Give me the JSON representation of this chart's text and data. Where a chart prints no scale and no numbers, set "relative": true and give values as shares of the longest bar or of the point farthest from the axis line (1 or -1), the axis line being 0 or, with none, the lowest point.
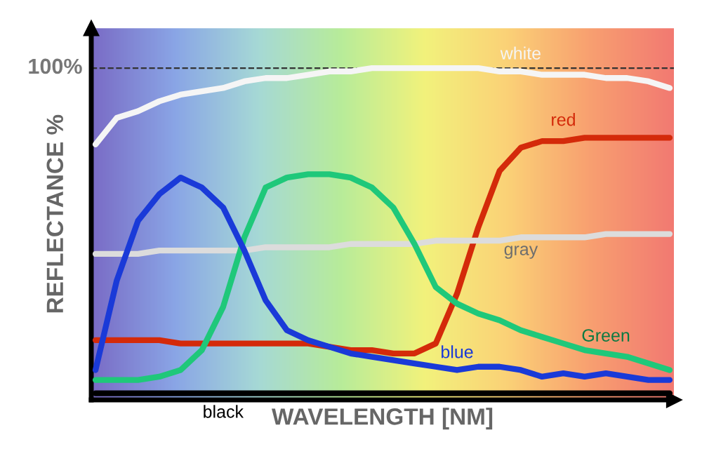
{
  "chart_data": {
    "type": "line",
    "relative": true,
    "xlabel": "WAVELENGTH [NM]",
    "ylabel": "REFLECTANCE %",
    "categories": [
      null,
      null,
      null,
      null,
      null,
      null,
      null,
      null,
      null,
      null,
      null,
      null,
      null,
      null,
      null,
      null,
      null,
      null,
      null,
      null,
      null,
      null,
      null,
      null,
      null,
      null,
      null,
      null
    ],
    "ref_lines": [
      {
        "axis": "y",
        "value": 1,
        "label": "100%",
        "color": "#333333",
        "line_style": "dashed"
      }
    ],
    "series": [
      {
        "name": "white",
        "color": "#f5f5f5",
        "values": [
          0.77,
          0.85,
          0.87,
          0.9,
          0.92,
          0.93,
          0.94,
          0.96,
          0.97,
          0.97,
          0.98,
          0.99,
          0.99,
          1.0,
          1.0,
          1.0,
          1.0,
          1.0,
          1.0,
          0.99,
          0.99,
          0.98,
          0.98,
          0.98,
          0.97,
          0.97,
          0.96,
          0.94
        ]
      },
      {
        "name": "red",
        "color": "#d42a0a",
        "values": [
          0.18,
          0.18,
          0.18,
          0.18,
          0.17,
          0.17,
          0.17,
          0.17,
          0.17,
          0.17,
          0.17,
          0.16,
          0.15,
          0.15,
          0.14,
          0.14,
          0.17,
          0.32,
          0.52,
          0.69,
          0.76,
          0.78,
          0.78,
          0.79,
          0.79,
          0.79,
          0.79,
          0.79
        ]
      },
      {
        "name": "gray",
        "color": "#dcdcdc",
        "values": [
          0.44,
          0.44,
          0.44,
          0.45,
          0.45,
          0.45,
          0.45,
          0.45,
          0.46,
          0.46,
          0.46,
          0.46,
          0.47,
          0.47,
          0.47,
          0.47,
          0.48,
          0.48,
          0.48,
          0.48,
          0.49,
          0.49,
          0.49,
          0.49,
          0.5,
          0.5,
          0.5,
          0.5
        ]
      },
      {
        "name": "Green",
        "color": "#1fc87a",
        "values": [
          0.06,
          0.06,
          0.06,
          0.07,
          0.09,
          0.15,
          0.28,
          0.49,
          0.64,
          0.67,
          0.68,
          0.68,
          0.67,
          0.64,
          0.58,
          0.47,
          0.34,
          0.29,
          0.26,
          0.24,
          0.21,
          0.19,
          0.17,
          0.15,
          0.14,
          0.13,
          0.11,
          0.09
        ]
      },
      {
        "name": "blue",
        "color": "#1a3ad8",
        "values": [
          0.09,
          0.36,
          0.54,
          0.62,
          0.67,
          0.64,
          0.58,
          0.45,
          0.3,
          0.21,
          0.18,
          0.16,
          0.14,
          0.13,
          0.12,
          0.11,
          0.1,
          0.09,
          0.1,
          0.1,
          0.09,
          0.07,
          0.08,
          0.07,
          0.08,
          0.07,
          0.06,
          0.06
        ]
      },
      {
        "name": "black",
        "color": "#000000",
        "values": [
          0.02,
          0.02,
          0.02,
          0.02,
          0.02,
          0.02,
          0.02,
          0.02,
          0.02,
          0.02,
          0.02,
          0.02,
          0.02,
          0.02,
          0.02,
          0.02,
          0.02,
          0.02,
          0.02,
          0.02,
          0.02,
          0.02,
          0.02,
          0.02,
          0.02,
          0.02,
          0.02,
          0.02
        ]
      }
    ]
  }
}
